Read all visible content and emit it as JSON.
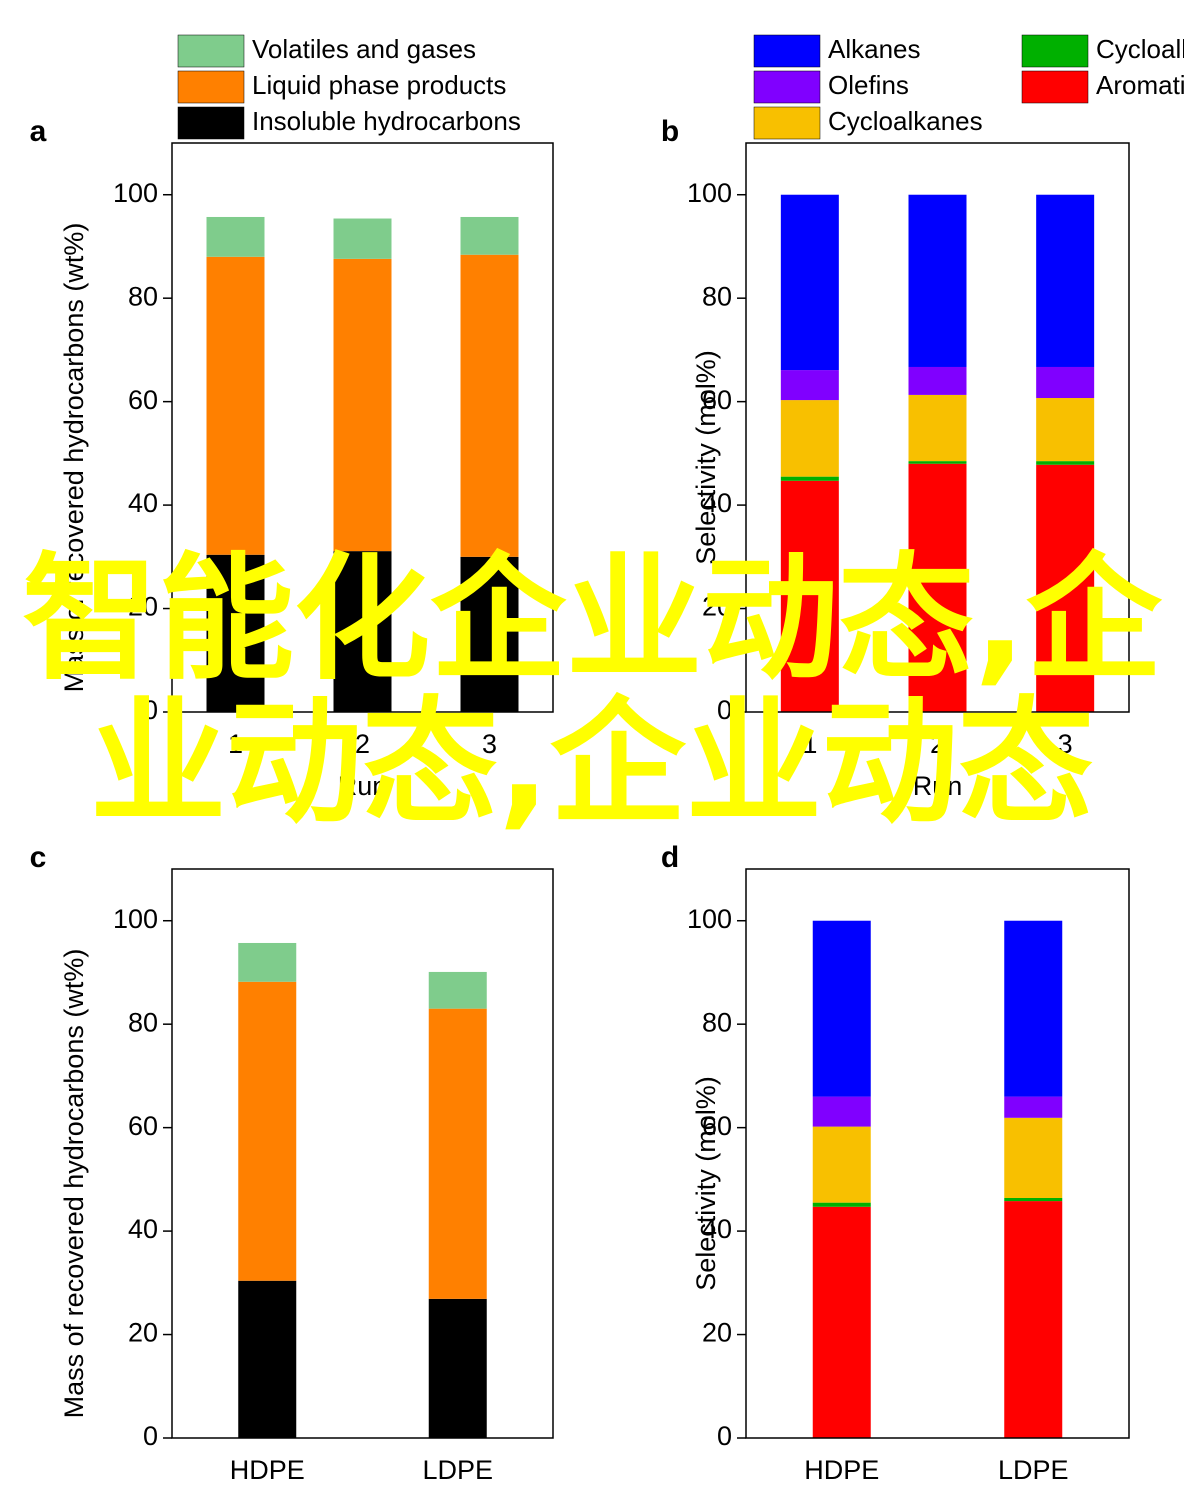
{
  "chart_data": [
    {
      "type": "bar",
      "stacked": true,
      "label": "a",
      "ylabel": "Mass of recovered hydrocarbons (wt%)",
      "xlabel": "Run",
      "legend": true,
      "categories": [
        "1",
        "2",
        "3"
      ],
      "series": [
        {
          "name": "Insoluble hydrocarbons",
          "color": "#000000",
          "values": [
            30.4,
            31.1,
            30.0
          ]
        },
        {
          "name": "Liquid phase products",
          "color": "#ff8000",
          "values": [
            57.6,
            56.5,
            58.4
          ]
        },
        {
          "name": "Volatiles and gases",
          "color": "#7fcc8c",
          "values": [
            7.7,
            7.8,
            7.3
          ]
        }
      ],
      "ylim": [
        0,
        110
      ],
      "yticks": [
        0,
        20,
        40,
        60,
        80,
        100
      ]
    },
    {
      "type": "bar",
      "stacked": true,
      "label": "b",
      "ylabel": "Selectivity (mol%)",
      "xlabel": "Run",
      "legend": true,
      "categories": [
        "1",
        "2",
        "3"
      ],
      "series": [
        {
          "name": "Aromatics",
          "color": "#ff0000",
          "values": [
            44.7,
            48.0,
            47.8
          ]
        },
        {
          "name": "Cycloalkenes",
          "color": "#00b000",
          "values": [
            0.8,
            0.5,
            0.7
          ]
        },
        {
          "name": "Cycloalkanes",
          "color": "#f8c000",
          "values": [
            14.8,
            12.8,
            12.2
          ]
        },
        {
          "name": "Olefins",
          "color": "#8000ff",
          "values": [
            5.8,
            5.4,
            6.0
          ]
        },
        {
          "name": "Alkanes",
          "color": "#0000ff",
          "values": [
            33.9,
            33.3,
            33.3
          ]
        }
      ],
      "ylim": [
        0,
        110
      ],
      "yticks": [
        0,
        20,
        40,
        60,
        80,
        100
      ]
    },
    {
      "type": "bar",
      "stacked": true,
      "label": "c",
      "ylabel": "Mass of recovered hydrocarbons (wt%)",
      "legend": false,
      "categories": [
        "HDPE",
        "LDPE"
      ],
      "series": [
        {
          "name": "Insoluble hydrocarbons",
          "color": "#000000",
          "values": [
            30.4,
            26.9
          ]
        },
        {
          "name": "Liquid phase products",
          "color": "#ff8000",
          "values": [
            57.8,
            56.1
          ]
        },
        {
          "name": "Volatiles and gases",
          "color": "#7fcc8c",
          "values": [
            7.5,
            7.1
          ]
        }
      ],
      "ylim": [
        0,
        110
      ],
      "yticks": [
        0,
        20,
        40,
        60,
        80,
        100
      ]
    },
    {
      "type": "bar",
      "stacked": true,
      "label": "d",
      "ylabel": "Selectivity (mol%)",
      "legend": false,
      "categories": [
        "HDPE",
        "LDPE"
      ],
      "series": [
        {
          "name": "Aromatics",
          "color": "#ff0000",
          "values": [
            44.7,
            45.8
          ]
        },
        {
          "name": "Cycloalkenes",
          "color": "#00b000",
          "values": [
            0.8,
            0.6
          ]
        },
        {
          "name": "Cycloalkanes",
          "color": "#f8c000",
          "values": [
            14.7,
            15.5
          ]
        },
        {
          "name": "Olefins",
          "color": "#8000ff",
          "values": [
            5.8,
            4.1
          ]
        },
        {
          "name": "Alkanes",
          "color": "#0000ff",
          "values": [
            34.0,
            34.0
          ]
        }
      ],
      "ylim": [
        0,
        110
      ],
      "yticks": [
        0,
        20,
        40,
        60,
        80,
        100
      ]
    }
  ],
  "overlay_text": "智能化企业动态,企业动态,企业动态"
}
